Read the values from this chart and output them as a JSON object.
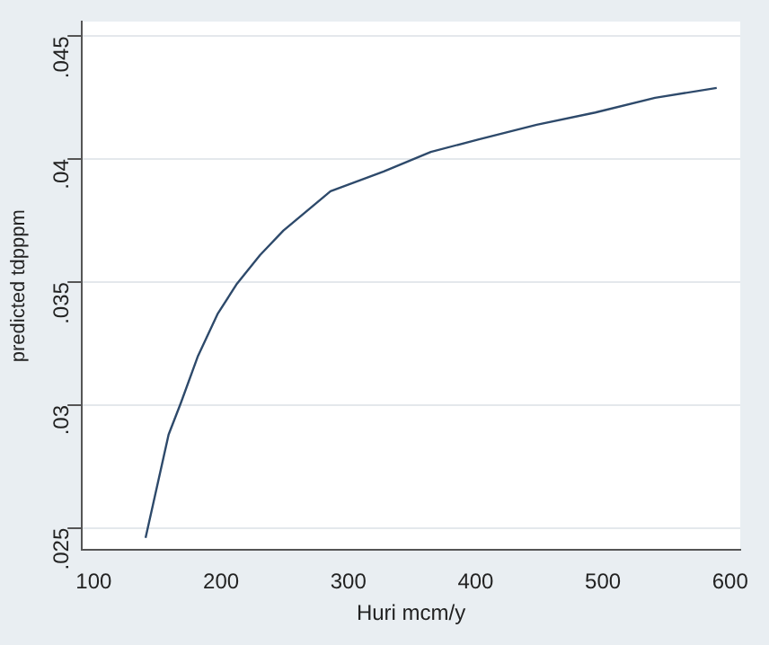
{
  "chart_data": {
    "type": "line",
    "xlabel": "Huri mcm/y",
    "ylabel": "predicted tdpppm",
    "x": [
      140.7,
      158.8,
      168.5,
      181.9,
      197.2,
      212,
      230.6,
      249,
      286,
      327.8,
      364.8,
      401.9,
      448,
      494,
      541,
      589.4
    ],
    "series": [
      {
        "color": "#2e4a6b",
        "values": [
          0.0246,
          0.0288,
          0.0301,
          0.032,
          0.0337,
          0.0349,
          0.0361,
          0.0371,
          0.0387,
          0.0395,
          0.0403,
          0.0408,
          0.0414,
          0.0419,
          0.0425,
          0.0429
        ]
      }
    ],
    "xlim": [
      90.7,
      607.9
    ],
    "xticks": [
      100,
      200,
      300,
      400,
      500,
      600
    ],
    "ylim": [
      0.0241,
      0.0456
    ],
    "yticks": [
      {
        "value": 0.025,
        "label": ".025"
      },
      {
        "value": 0.03,
        "label": ".03"
      },
      {
        "value": 0.035,
        "label": ".035"
      },
      {
        "value": 0.04,
        "label": ".04"
      },
      {
        "value": 0.045,
        "label": ".045"
      }
    ],
    "grid": "y",
    "legend": false,
    "marker": "none",
    "line_style": "solid"
  }
}
